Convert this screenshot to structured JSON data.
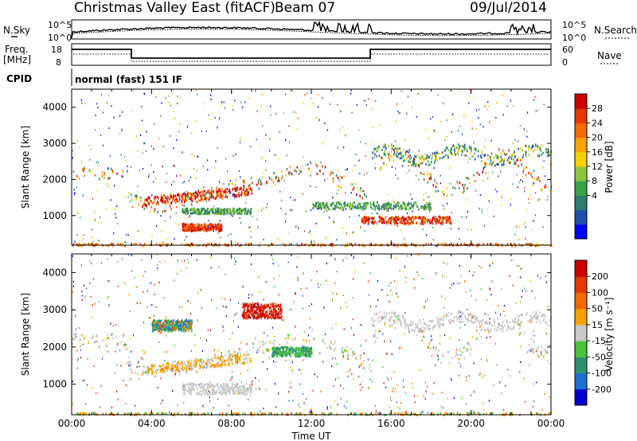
{
  "header": {
    "station": "Christmas Valley East (fitACF)",
    "beam": "Beam 07",
    "date": "09/Jul/2014"
  },
  "noise_panel": {
    "left_label": "N.Sky",
    "right_label": "N.Search",
    "left_ticks": [
      "10^5",
      "10^0"
    ],
    "right_ticks": [
      "10^5",
      "10^0"
    ]
  },
  "freq_panel": {
    "left_label_1": "Freq.",
    "left_label_2": "[MHz]",
    "right_label": "Nave",
    "left_ticks": [
      "18",
      "8"
    ],
    "right_ticks": [
      "60",
      "0"
    ]
  },
  "cpid": {
    "label": "CPID",
    "value": "normal (fast) 151 IF"
  },
  "chart_data": [
    {
      "type": "heatmap",
      "ylabel": "Slant Range [km]",
      "yticks": [
        "1000",
        "2000",
        "3000",
        "4000"
      ],
      "ylim": [
        180,
        4500
      ],
      "xlim_hours": [
        0,
        24
      ],
      "colorbar": {
        "label": "Power [dB]",
        "ticks": [
          "28",
          "24",
          "20",
          "16",
          "12",
          "8",
          "4"
        ],
        "colors": [
          "#0000ff",
          "#1f4fa8",
          "#2e7d6e",
          "#3aa04a",
          "#8cc63f",
          "#f5d000",
          "#f7a400",
          "#f26a00",
          "#e23a00",
          "#cc0000"
        ]
      }
    },
    {
      "type": "heatmap",
      "ylabel": "Slant Range [km]",
      "yticks": [
        "1000",
        "2000",
        "3000",
        "4000"
      ],
      "ylim": [
        180,
        4500
      ],
      "xlim_hours": [
        0,
        24
      ],
      "colorbar": {
        "label": "Velocity [m s⁻¹]",
        "ticks": [
          "200",
          "100",
          "50",
          "15",
          "-15",
          "-50",
          "-100",
          "-200"
        ],
        "colors": [
          "#0000cc",
          "#1f6fd0",
          "#2f8f6f",
          "#47c23a",
          "#c8c8c8",
          "#f5a000",
          "#f26a00",
          "#e23a00",
          "#cc0000"
        ]
      }
    }
  ],
  "xaxis": {
    "label": "Time UT",
    "ticks": [
      "00:00",
      "04:00",
      "08:00",
      "12:00",
      "16:00",
      "20:00",
      "00:00"
    ]
  }
}
